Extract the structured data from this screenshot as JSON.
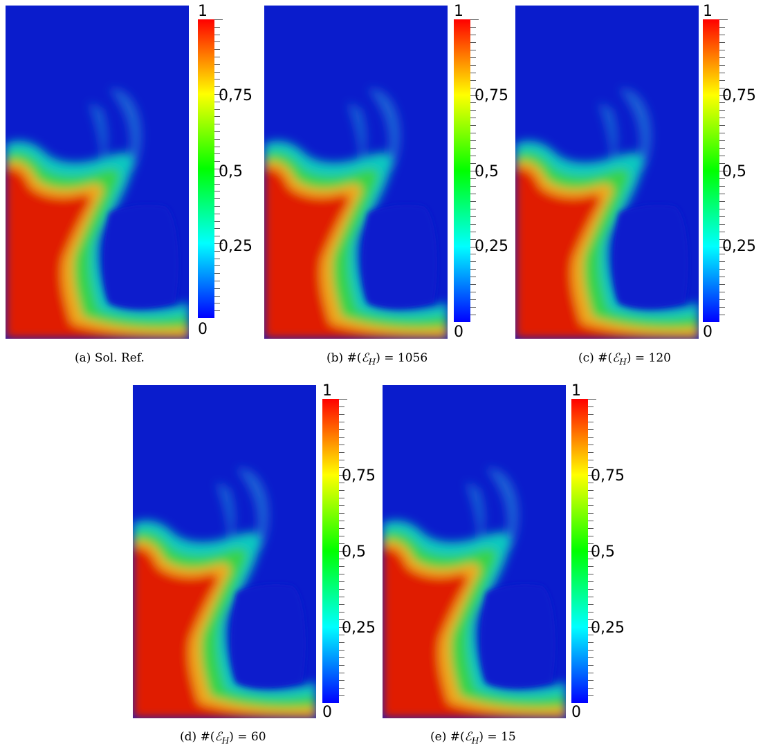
{
  "colorbar": {
    "tick_labels": {
      "max": "1",
      "q75": "0,75",
      "q50": "0,5",
      "q25": "0,25",
      "min": "0"
    },
    "colormap": [
      "#0000ff",
      "#0080ff",
      "#00ffff",
      "#00ff80",
      "#00ff00",
      "#80ff00",
      "#ffff00",
      "#ff8000",
      "#ff0000"
    ]
  },
  "panels": [
    {
      "id": "a",
      "caption_tag": "(a)",
      "caption_text": "Sol. Ref.",
      "elements": ""
    },
    {
      "id": "b",
      "caption_tag": "(b)",
      "caption_text": "#(",
      "elements": "1056"
    },
    {
      "id": "c",
      "caption_tag": "(c)",
      "caption_text": "#(",
      "elements": "120"
    },
    {
      "id": "d",
      "caption_tag": "(d)",
      "caption_text": "#(",
      "elements": "60"
    },
    {
      "id": "e",
      "caption_tag": "(e)",
      "caption_text": "#(",
      "elements": "15"
    }
  ],
  "caption_symbol": {
    "script_e": "ℰ",
    "subscript": "H",
    "close": ") ="
  }
}
